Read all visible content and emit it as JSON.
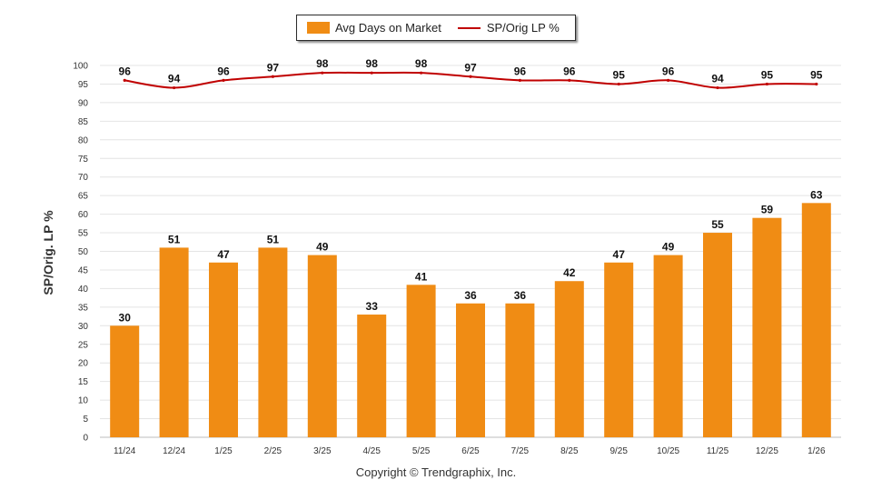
{
  "chart_data": {
    "type": "bar",
    "categories": [
      "11/24",
      "12/24",
      "1/25",
      "2/25",
      "3/25",
      "4/25",
      "5/25",
      "6/25",
      "7/25",
      "8/25",
      "9/25",
      "10/25",
      "11/25",
      "12/25",
      "1/26"
    ],
    "series": [
      {
        "name": "Avg Days on Market",
        "type": "bar",
        "color": "#f08c14",
        "values": [
          30,
          51,
          47,
          51,
          49,
          33,
          41,
          36,
          36,
          42,
          47,
          49,
          55,
          59,
          63
        ]
      },
      {
        "name": "SP/Orig LP %",
        "type": "line",
        "color": "#c00000",
        "values": [
          96,
          94,
          96,
          97,
          98,
          98,
          98,
          97,
          96,
          96,
          95,
          96,
          94,
          95,
          95
        ]
      }
    ],
    "ylabel": "SP/Orig. LP %",
    "xlabel": "",
    "ylim": [
      0,
      100
    ],
    "yticks": [
      0,
      5,
      10,
      15,
      20,
      25,
      30,
      35,
      40,
      45,
      50,
      55,
      60,
      65,
      70,
      75,
      80,
      85,
      90,
      95,
      100
    ],
    "grid": true,
    "legend_position": "top-center"
  },
  "footer": "Copyright © Trendgraphix, Inc."
}
